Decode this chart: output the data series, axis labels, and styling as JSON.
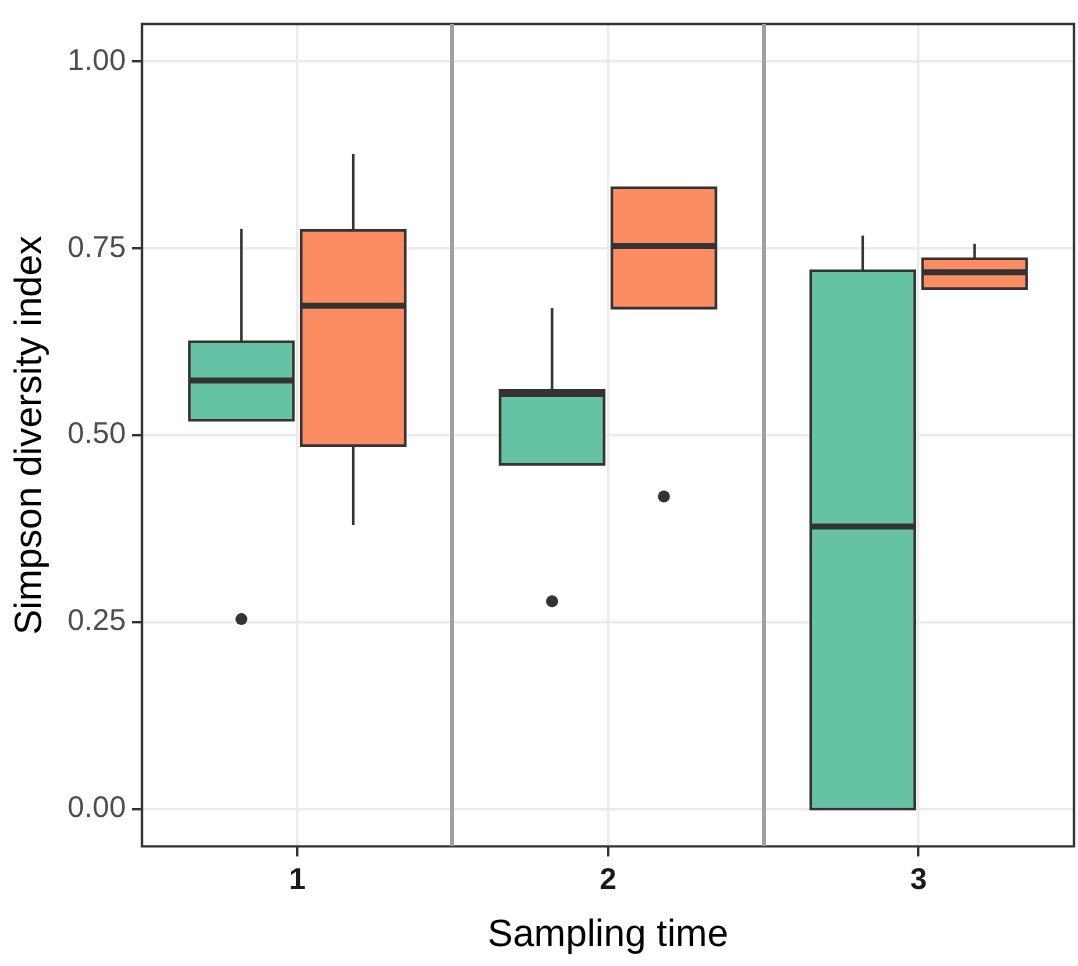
{
  "chart_data": {
    "type": "box",
    "xlabel": "Sampling time",
    "ylabel": "Simpson diversity index",
    "categories": [
      "1",
      "2",
      "3"
    ],
    "ylim": [
      -0.05,
      1.05
    ],
    "yticks": [
      {
        "value": 0,
        "label": "0.00"
      },
      {
        "value": 0.25,
        "label": "0.25"
      },
      {
        "value": 0.5,
        "label": "0.50"
      },
      {
        "value": 0.75,
        "label": "0.75"
      },
      {
        "value": 1,
        "label": "1.00"
      }
    ],
    "grid": true,
    "series": [
      {
        "color": "#66c2a5",
        "boxes": [
          {
            "low": 0.52,
            "q1": 0.52,
            "median": 0.573,
            "q3": 0.625,
            "high": 0.776,
            "outliers": [
              0.254
            ]
          },
          {
            "low": 0.461,
            "q1": 0.461,
            "median": 0.555,
            "q3": 0.56,
            "high": 0.67,
            "outliers": [
              0.278
            ]
          },
          {
            "low": 0,
            "q1": 0,
            "median": 0.378,
            "q3": 0.72,
            "high": 0.767
          }
        ]
      },
      {
        "color": "#fc8d62",
        "boxes": [
          {
            "low": 0.38,
            "q1": 0.486,
            "median": 0.673,
            "q3": 0.774,
            "high": 0.876
          },
          {
            "low": 0.67,
            "q1": 0.67,
            "median": 0.753,
            "q3": 0.831,
            "high": 0.831,
            "outliers": [
              0.418
            ]
          },
          {
            "low": 0.696,
            "q1": 0.696,
            "median": 0.718,
            "q3": 0.736,
            "high": 0.756
          }
        ]
      }
    ]
  }
}
